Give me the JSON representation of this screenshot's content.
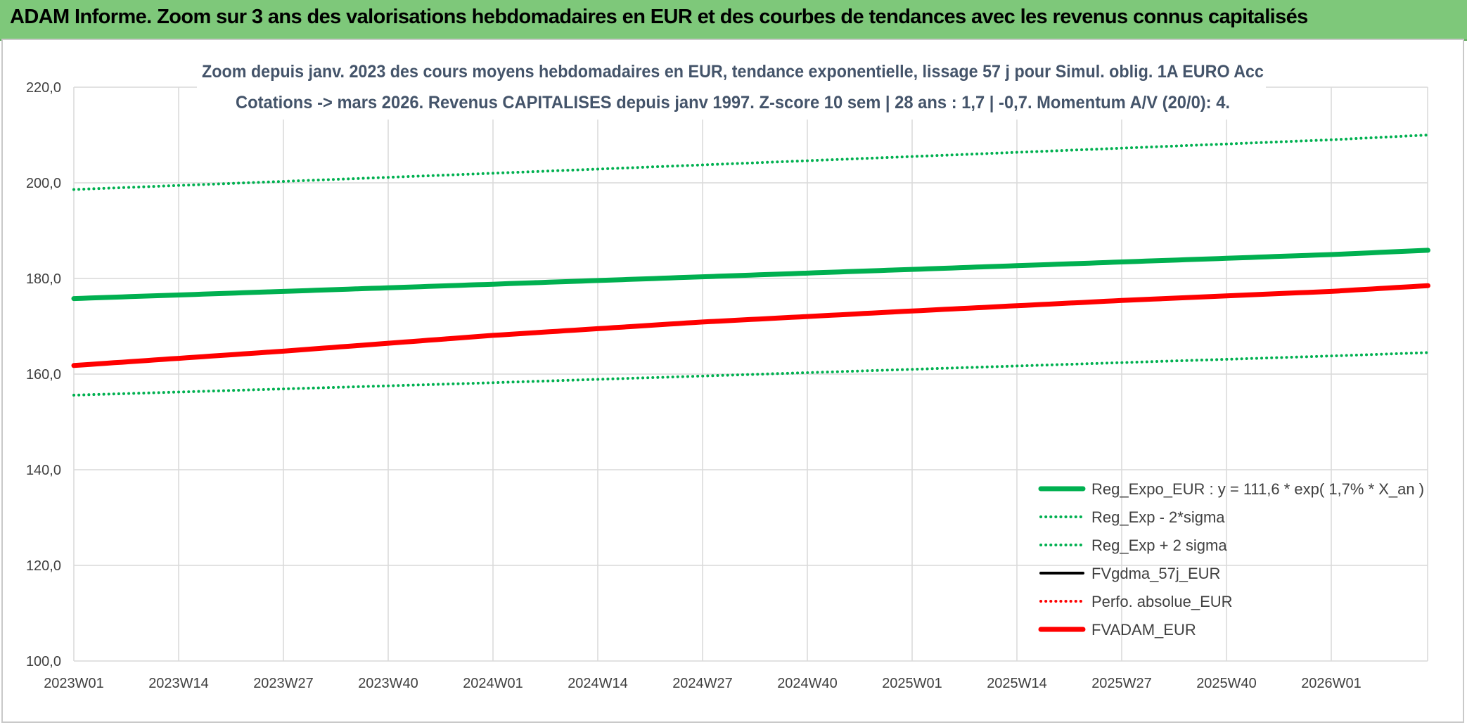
{
  "banner": {
    "title": "ADAM Informe. Zoom sur 3 ans des valorisations hebdomadaires en EUR et des courbes de tendances avec les revenus connus capitalisés",
    "background": "#7ec87a"
  },
  "chart_data": {
    "type": "line",
    "title_line1": "Zoom depuis janv. 2023 des cours moyens hebdomadaires en EUR, tendance exponentielle, lissage 57 j pour Simul. oblig. 1A EURO Acc",
    "title_line2": "Cotations -> mars 2026. Revenus CAPITALISES depuis janv 1997. Z-score 10 sem | 28 ans : 1,7 | -0,7. Momentum A/V (20/0): 4.",
    "xlabel": "",
    "ylabel": "",
    "ylim": [
      100,
      220
    ],
    "yticks": [
      "100,0",
      "120,0",
      "140,0",
      "160,0",
      "180,0",
      "200,0",
      "220,0"
    ],
    "x_categories": [
      "2023W01",
      "2023W14",
      "2023W27",
      "2023W40",
      "2024W01",
      "2024W14",
      "2024W27",
      "2024W40",
      "2025W01",
      "2025W14",
      "2025W27",
      "2025W40",
      "2026W01"
    ],
    "x_range_weeks": [
      0,
      168
    ],
    "grid": true,
    "legend_position": "bottom-right",
    "series": [
      {
        "name": "Reg_Expo_EUR : y = 111,6 * exp( 1,7% *  X_an )",
        "color": "#00b050",
        "style": "solid-thick",
        "x": [
          0,
          52,
          104,
          156,
          168
        ],
        "y": [
          175.8,
          178.8,
          181.9,
          185.0,
          185.9
        ]
      },
      {
        "name": "Reg_Exp - 2*sigma",
        "color": "#00b050",
        "style": "dotted",
        "x": [
          0,
          52,
          104,
          156,
          168
        ],
        "y": [
          155.6,
          158.2,
          161.0,
          163.8,
          164.5
        ]
      },
      {
        "name": "Reg_Exp + 2 sigma",
        "color": "#00b050",
        "style": "dotted",
        "x": [
          0,
          52,
          104,
          156,
          168
        ],
        "y": [
          198.6,
          202.0,
          205.5,
          209.0,
          210.0
        ]
      },
      {
        "name": "FVgdma_57j_EUR",
        "color": "#000000",
        "style": "solid",
        "x": [],
        "y": []
      },
      {
        "name": "Perfo. absolue_EUR",
        "color": "#ff0000",
        "style": "dotted",
        "x": [],
        "y": []
      },
      {
        "name": "FVADAM_EUR",
        "color": "#ff0000",
        "style": "solid-thick",
        "x": [
          0,
          26,
          52,
          78,
          104,
          130,
          156,
          168
        ],
        "y": [
          161.8,
          164.8,
          168.1,
          170.9,
          173.2,
          175.4,
          177.3,
          178.5
        ]
      }
    ]
  }
}
